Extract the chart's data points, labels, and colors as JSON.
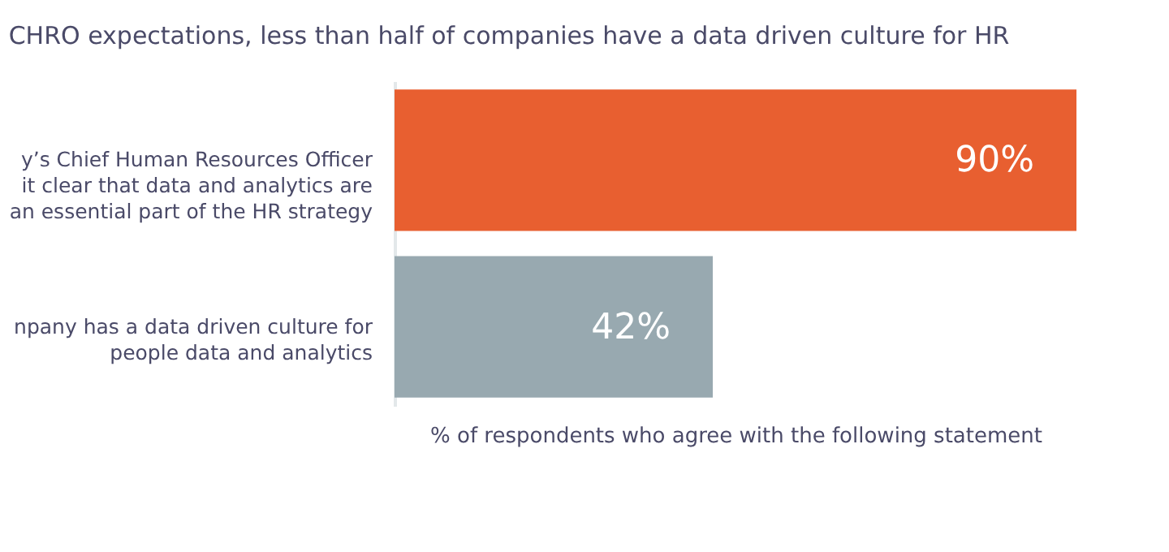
{
  "chart_data": {
    "type": "bar",
    "orientation": "horizontal",
    "title": "CHRO expectations, less than half of companies have a data driven culture for HR",
    "categories": [
      "y’s Chief Human Resources Officer\nit clear that data and analytics are\nan essential part of the HR strategy",
      "npany has a data driven culture for\npeople data and analytics"
    ],
    "values": [
      90,
      42
    ],
    "colors": [
      "#e85f30",
      "#98a9b0"
    ],
    "value_labels": [
      "90%",
      "42%"
    ],
    "xlabel": "% of respondents who agree with the following statement",
    "tick_labels": "y"
  }
}
